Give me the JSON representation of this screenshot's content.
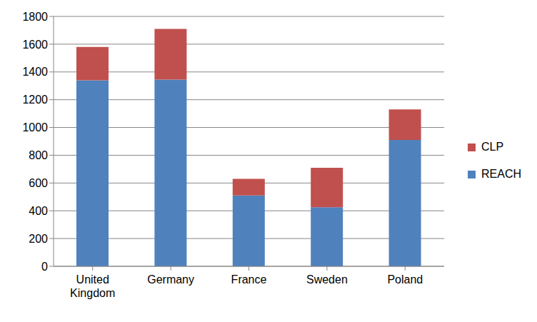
{
  "chart_data": {
    "type": "bar",
    "stacked": true,
    "categories": [
      "United Kingdom",
      "Germany",
      "France",
      "Sweden",
      "Poland"
    ],
    "series": [
      {
        "name": "REACH",
        "color": "#4f81bd",
        "values": [
          1340,
          1345,
          510,
          425,
          910
        ]
      },
      {
        "name": "CLP",
        "color": "#c0504d",
        "values": [
          240,
          365,
          120,
          285,
          220
        ]
      }
    ],
    "ylim": [
      0,
      1800
    ],
    "yticks": [
      0,
      200,
      400,
      600,
      800,
      1000,
      1200,
      1400,
      1600,
      1800
    ],
    "grid": true,
    "legend": "right"
  }
}
